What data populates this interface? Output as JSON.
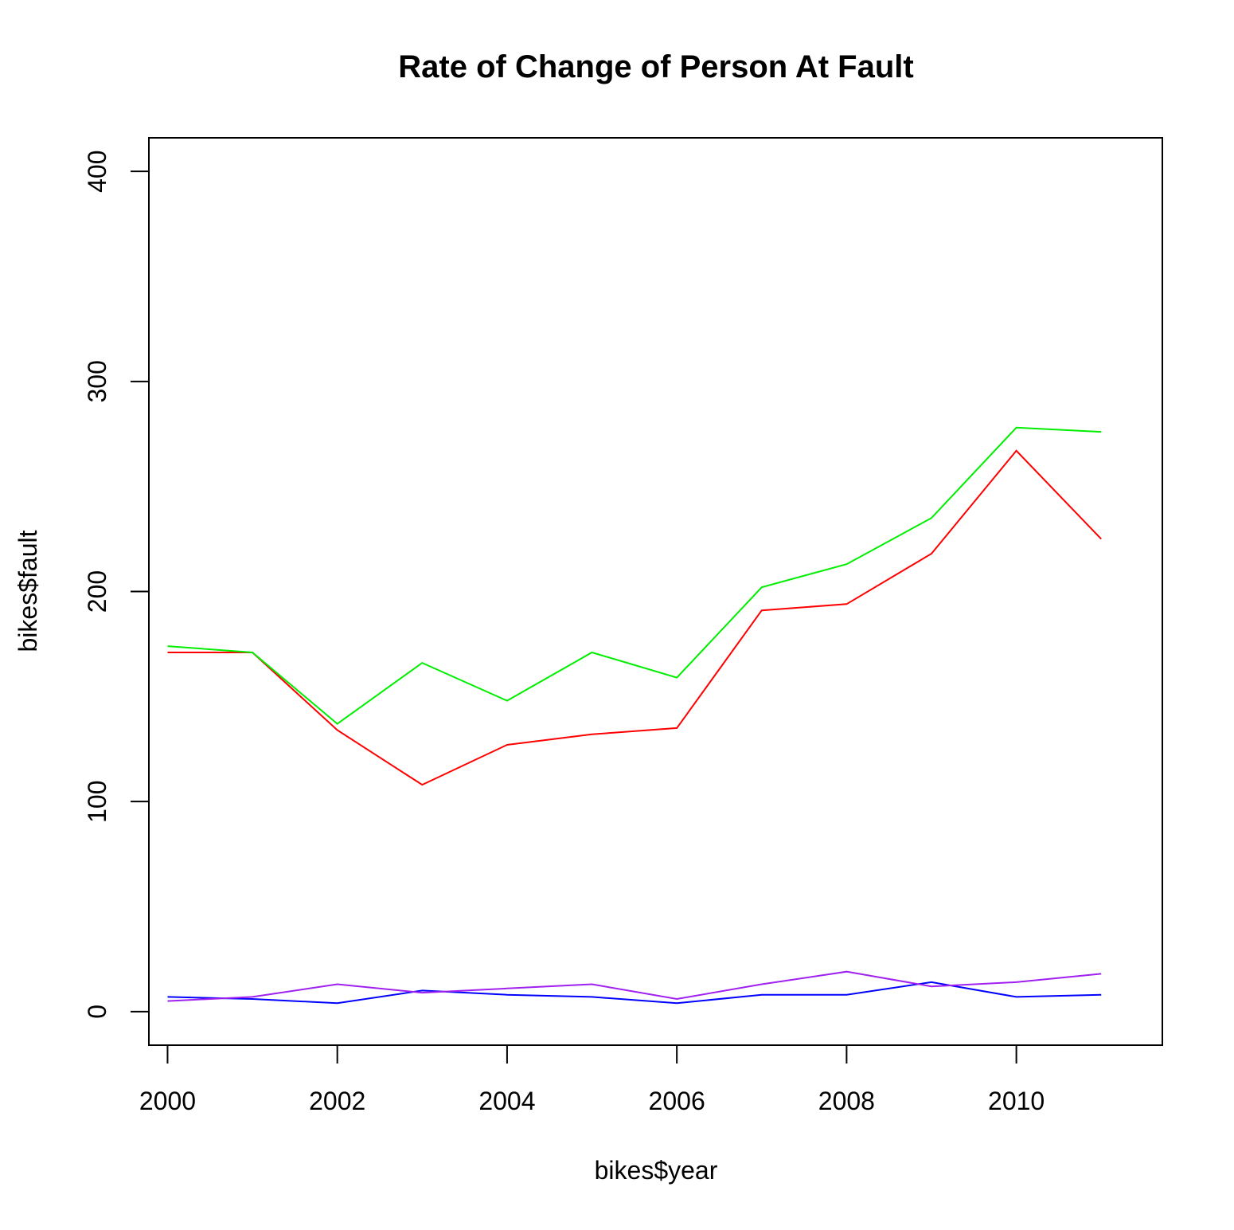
{
  "chart_data": {
    "type": "line",
    "title": "Rate of Change of Person At Fault",
    "xlabel": "bikes$year",
    "ylabel": "bikes$fault",
    "xlim": [
      1999.78,
      2011.72
    ],
    "ylim": [
      -16,
      416
    ],
    "x_ticks": [
      2000,
      2002,
      2004,
      2006,
      2008,
      2010
    ],
    "y_ticks": [
      0,
      100,
      200,
      300,
      400
    ],
    "grid": false,
    "legend": "none",
    "x": [
      2000,
      2001,
      2002,
      2003,
      2004,
      2005,
      2006,
      2007,
      2008,
      2009,
      2010,
      2011
    ],
    "series": [
      {
        "color": "#ff0000",
        "values": [
          171,
          171,
          134,
          108,
          127,
          132,
          135,
          191,
          194,
          218,
          267,
          225
        ]
      },
      {
        "color": "#00ee00",
        "values": [
          174,
          171,
          137,
          166,
          148,
          171,
          159,
          202,
          213,
          235,
          278,
          276
        ]
      },
      {
        "color": "#0000ff",
        "values": [
          7,
          6,
          4,
          10,
          8,
          7,
          4,
          8,
          8,
          14,
          7,
          8
        ]
      },
      {
        "color": "#a020f0",
        "values": [
          5,
          7,
          13,
          9,
          11,
          13,
          6,
          13,
          19,
          12,
          14,
          18
        ]
      }
    ]
  }
}
